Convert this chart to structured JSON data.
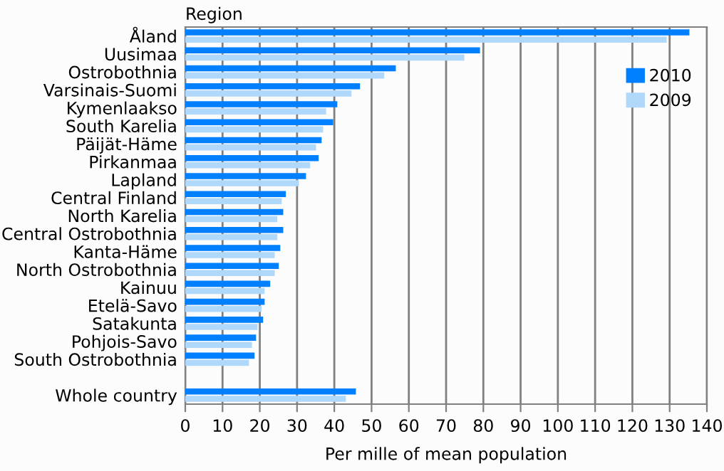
{
  "chart_data": {
    "type": "bar",
    "orientation": "horizontal",
    "ylabel": "Region",
    "xlabel": "Per mille of mean population",
    "categories": [
      "Åland",
      "Uusimaa",
      "Ostrobothnia",
      "Varsinais-Suomi",
      "Kymenlaakso",
      "South Karelia",
      "Päijät-Häme",
      "Pirkanmaa",
      "Lapland",
      "Central Finland",
      "North Karelia",
      "Central Ostrobothnia",
      "Kanta-Häme",
      "North Ostrobothnia",
      "Kainuu",
      "Etelä-Savo",
      "Satakunta",
      "Pohjois-Savo",
      "South Ostrobothnia",
      null,
      "Whole country"
    ],
    "series": [
      {
        "name": "2010",
        "color": "#0080ff",
        "values": [
          135.3,
          79.1,
          56.5,
          46.9,
          40.8,
          39.7,
          36.6,
          35.8,
          32.4,
          27.0,
          26.3,
          26.3,
          25.5,
          25.1,
          22.8,
          21.3,
          20.9,
          19.0,
          18.6,
          null,
          45.8
        ]
      },
      {
        "name": "2009",
        "color": "#b0d8fa",
        "values": [
          129.2,
          74.9,
          53.4,
          44.6,
          37.8,
          37.0,
          35.1,
          33.5,
          30.5,
          25.9,
          24.7,
          24.7,
          24.0,
          24.0,
          21.3,
          20.5,
          19.4,
          17.9,
          17.1,
          null,
          43.1
        ]
      }
    ],
    "xlim": [
      0,
      140
    ],
    "xticks": [
      0,
      10,
      20,
      30,
      40,
      50,
      60,
      70,
      80,
      90,
      100,
      110,
      120,
      130,
      140
    ],
    "grid": "x",
    "legend": "top right"
  }
}
